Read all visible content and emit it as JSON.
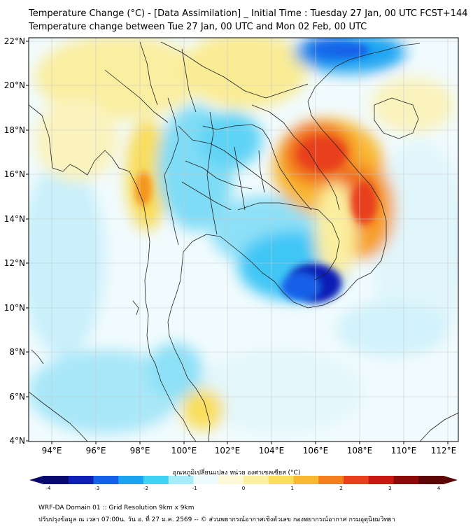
{
  "title_line1": "Temperature Change (°C) - [Data Assimilation] _ Initial Time : Tuesday 27 Jan, 00 UTC FCST+144",
  "title_line2": "Temperature change between Tue 27 Jan, 00 UTC and Mon 02 Feb, 00 UTC",
  "lat_ticks": [
    "22°N",
    "20°N",
    "18°N",
    "16°N",
    "14°N",
    "12°N",
    "10°N",
    "8°N",
    "6°N",
    "4°N"
  ],
  "lon_ticks": [
    "94°E",
    "96°E",
    "98°E",
    "100°E",
    "102°E",
    "104°E",
    "106°E",
    "108°E",
    "110°E",
    "112°E"
  ],
  "colorbar": {
    "label": "อุณหภูมิเปลี่ยนแปลง หน่วย องศาเซลเซียส (°C)",
    "ticks": [
      "-4",
      "-3",
      "-2",
      "-1",
      "0",
      "1",
      "2",
      "3",
      "4"
    ],
    "colors": [
      "#08086e",
      "#0d1fb5",
      "#1560e8",
      "#1aa4f2",
      "#3fd3f5",
      "#a7ecfa",
      "#eefbfd",
      "#fdf9d6",
      "#faf0a0",
      "#f9de5c",
      "#f9b832",
      "#f47d1c",
      "#e8401a",
      "#c9180f",
      "#8c0a0a",
      "#5c0606"
    ]
  },
  "footer_line1": "WRF-DA Domain 01 :: Grid Resolution 9km x 9km",
  "footer_line2": "ปรับปรุงข้อมูล ณ เวลา 07:00น. วัน อ. ที่ 27 ม.ค. 2569 -- © ส่วนพยากรณ์อากาศเชิงตัวเลข กองพยากรณ์อากาศ กรมอุตุนิยมวิทยา"
}
